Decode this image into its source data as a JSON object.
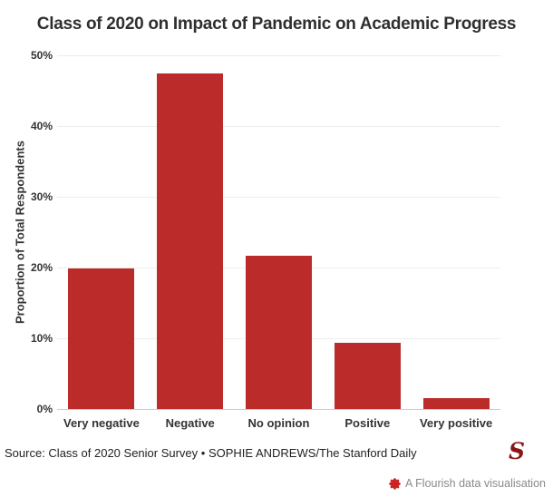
{
  "chart_data": {
    "type": "bar",
    "title": "Class of 2020 on Impact of Pandemic on Academic Progress",
    "categories": [
      "Very negative",
      "Negative",
      "No opinion",
      "Positive",
      "Very positive"
    ],
    "values": [
      19.9,
      47.5,
      21.7,
      9.4,
      1.6
    ],
    "xlabel": "",
    "ylabel": "Proportion of Total Respondents",
    "ylim": [
      0,
      50
    ],
    "yticks": [
      0,
      10,
      20,
      30,
      40,
      50
    ],
    "ytick_labels": [
      "0%",
      "10%",
      "20%",
      "30%",
      "40%",
      "50%"
    ],
    "grid": true,
    "legend_position": "none",
    "bar_color": "#ba2b2a",
    "gridline_color": "#ededed",
    "axisline_color": "#cccccc"
  },
  "footer": {
    "source": "Source: Class of 2020 Senior Survey • SOPHIE ANDREWS/The Stanford Daily",
    "logo_letter": "S",
    "attribution": "A Flourish data visualisation"
  },
  "colors": {
    "bar": "#ba2b2a",
    "logo_red": "#8c1515",
    "flourish_red": "#cc2222",
    "attribution_gray": "#8a8a8a"
  }
}
